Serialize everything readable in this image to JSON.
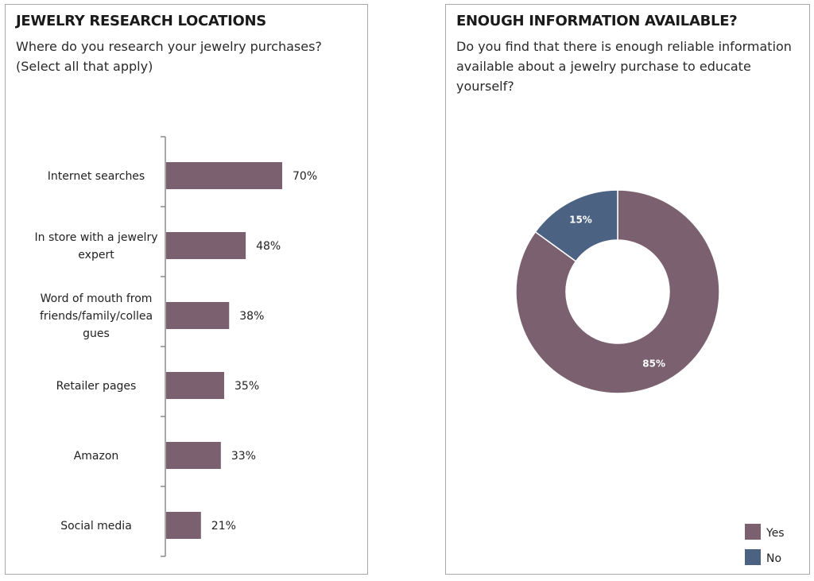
{
  "left": {
    "title": "JEWELRY RESEARCH LOCATIONS",
    "subtitle_line1": "Where do you research your jewelry purchases?",
    "subtitle_line2": "(Select all that apply)"
  },
  "right": {
    "title": "ENOUGH INFORMATION AVAILABLE?",
    "subtitle_line1": "Do you find that there is enough reliable information",
    "subtitle_line2": "available about a jewelry purchase to educate",
    "subtitle_line3": "yourself?"
  },
  "chart_data": [
    {
      "type": "bar",
      "orientation": "horizontal",
      "title": "JEWELRY RESEARCH LOCATIONS",
      "subtitle": "Where do you research your jewelry purchases? (Select all that apply)",
      "categories": [
        [
          "Internet searches"
        ],
        [
          "In store with a jewelry",
          "expert"
        ],
        [
          "Word of mouth from",
          "friends/family/collea",
          "gues"
        ],
        [
          "Retailer pages"
        ],
        [
          "Amazon"
        ],
        [
          "Social media"
        ]
      ],
      "values": [
        70,
        48,
        38,
        35,
        33,
        21
      ],
      "value_labels": [
        "70%",
        "48%",
        "38%",
        "35%",
        "33%",
        "21%"
      ],
      "xlim": [
        0,
        100
      ],
      "grid": false,
      "color": "#7b6070"
    },
    {
      "type": "pie",
      "donut": true,
      "title": "ENOUGH INFORMATION AVAILABLE?",
      "subtitle": "Do you find that there is enough reliable information available about a jewelry purchase to educate yourself?",
      "slices": [
        {
          "name": "Yes",
          "value": 85,
          "label": "85%",
          "color": "#7b6070"
        },
        {
          "name": "No",
          "value": 15,
          "label": "15%",
          "color": "#4c6283"
        }
      ],
      "legend": "bottom-right"
    }
  ]
}
